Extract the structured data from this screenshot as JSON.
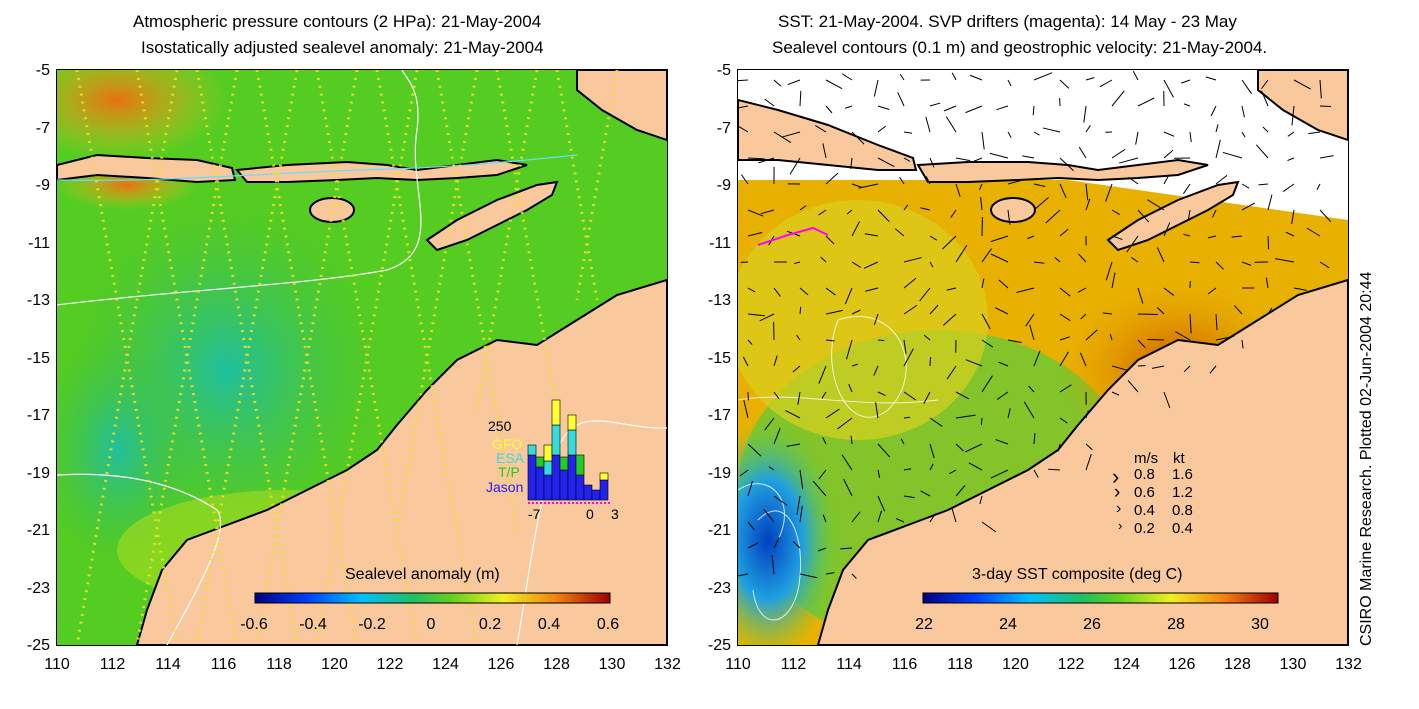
{
  "left": {
    "title1": "Atmospheric pressure contours (2 HPa): 21-May-2004",
    "title2": "Isostatically adjusted sealevel anomaly: 21-May-2004",
    "colorbar_label": "Sealevel anomaly (m)",
    "colorbar_ticks": [
      "-0.6",
      "-0.4",
      "-0.2",
      "0",
      "0.2",
      "0.4",
      "0.6"
    ],
    "inset": {
      "ymax_label": "250",
      "legend": [
        {
          "label": "GFO",
          "color": "#ffff33"
        },
        {
          "label": "ESA",
          "color": "#33dddd"
        },
        {
          "label": "T/P",
          "color": "#22cc22"
        },
        {
          "label": "Jason",
          "color": "#2222ee"
        }
      ],
      "xticks": [
        "-7",
        "0",
        "3"
      ]
    }
  },
  "right": {
    "title1": "SST: 21-May-2004. SVP drifters (magenta): 14 May - 23 May",
    "title2": "Sealevel contours (0.1 m) and geostrophic velocity: 21-May-2004.",
    "colorbar_label": "3-day SST composite (deg C)",
    "colorbar_ticks": [
      "22",
      "24",
      "26",
      "28",
      "30"
    ],
    "speed_legend": {
      "header_ms": "m/s",
      "header_kt": "kt",
      "rows": [
        {
          "ms": "0.8",
          "kt": "1.6"
        },
        {
          "ms": "0.6",
          "kt": "1.2"
        },
        {
          "ms": "0.4",
          "kt": "0.8"
        },
        {
          "ms": "0.2",
          "kt": "0.4"
        }
      ]
    }
  },
  "axes": {
    "y_ticks": [
      "-5",
      "-7",
      "-9",
      "-11",
      "-13",
      "-15",
      "-17",
      "-19",
      "-21",
      "-23",
      "-25"
    ],
    "x_ticks": [
      "110",
      "112",
      "114",
      "116",
      "118",
      "120",
      "122",
      "124",
      "126",
      "128",
      "130",
      "132"
    ]
  },
  "credit": "CSIRO Marine Research. Plotted 02-Jun-2004 20:44",
  "colors": {
    "land": "#f9c89d",
    "ocean_left": "#55d020",
    "ocean_right": "#e8b000"
  }
}
